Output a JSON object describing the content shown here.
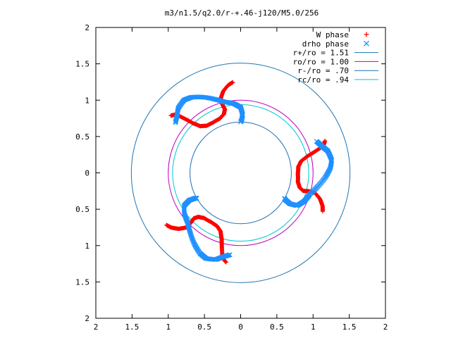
{
  "chart_data": {
    "type": "scatter",
    "title": "m3/n1.5/q2.0/r-+.46-j120/M5.0/256",
    "xlabel": "",
    "ylabel": "",
    "xlim": [
      -2,
      2
    ],
    "ylim": [
      -2,
      2
    ],
    "x_tick_labels": [
      "2",
      "1.5",
      "1",
      "0.5",
      "0",
      "0.5",
      "1",
      "1.5",
      "2"
    ],
    "y_tick_labels": [
      "2",
      "1.5",
      "1",
      "0.5",
      "0",
      "0.5",
      "1",
      "1.5",
      "2"
    ],
    "grid": false,
    "legend_position": "top-right",
    "series": [
      {
        "name": "W phase",
        "marker": "+",
        "color": "#ff0000",
        "lobes": [
          {
            "theta0": 95,
            "points": [
              [
                1.25,
                0.0
              ],
              [
                1.22,
                3
              ],
              [
                1.15,
                7
              ],
              [
                1.06,
                10
              ],
              [
                0.97,
                10
              ],
              [
                0.9,
                9
              ],
              [
                0.84,
                11
              ],
              [
                0.8,
                16
              ],
              [
                0.79,
                24
              ],
              [
                0.8,
                31
              ],
              [
                0.85,
                36
              ],
              [
                0.95,
                39
              ],
              [
                1.07,
                41
              ],
              [
                1.2,
                43
              ],
              [
                1.25,
                46
              ]
            ]
          },
          {
            "theta0": 215,
            "points": [
              [
                1.25,
                0.0
              ],
              [
                1.22,
                3
              ],
              [
                1.15,
                7
              ],
              [
                1.06,
                10
              ],
              [
                0.97,
                10
              ],
              [
                0.9,
                9
              ],
              [
                0.84,
                11
              ],
              [
                0.8,
                16
              ],
              [
                0.79,
                24
              ],
              [
                0.8,
                31
              ],
              [
                0.85,
                36
              ],
              [
                0.95,
                39
              ],
              [
                1.07,
                41
              ],
              [
                1.2,
                43
              ],
              [
                1.25,
                46
              ]
            ]
          },
          {
            "theta0": 335,
            "points": [
              [
                1.25,
                0.0
              ],
              [
                1.22,
                3
              ],
              [
                1.15,
                7
              ],
              [
                1.06,
                10
              ],
              [
                0.97,
                10
              ],
              [
                0.9,
                9
              ],
              [
                0.84,
                11
              ],
              [
                0.8,
                16
              ],
              [
                0.79,
                24
              ],
              [
                0.8,
                31
              ],
              [
                0.85,
                36
              ],
              [
                0.95,
                39
              ],
              [
                1.07,
                41
              ],
              [
                1.2,
                43
              ],
              [
                1.25,
                46
              ]
            ]
          }
        ]
      },
      {
        "name": "drho phase",
        "marker": "x",
        "color": "#1e90ff",
        "lobes": [
          {
            "theta0": 90,
            "points": [
              [
                0.7,
                0
              ],
              [
                0.72,
                -1
              ],
              [
                0.8,
                -2
              ],
              [
                0.9,
                0
              ],
              [
                0.96,
                6
              ],
              [
                1.0,
                13
              ],
              [
                1.08,
                20
              ],
              [
                1.17,
                27
              ],
              [
                1.24,
                33
              ],
              [
                1.27,
                38
              ],
              [
                1.24,
                44
              ],
              [
                1.18,
                48
              ],
              [
                1.13,
                53
              ]
            ]
          },
          {
            "theta0": 210,
            "points": [
              [
                0.7,
                0
              ],
              [
                0.72,
                -1
              ],
              [
                0.8,
                -2
              ],
              [
                0.9,
                0
              ],
              [
                0.96,
                6
              ],
              [
                1.0,
                13
              ],
              [
                1.08,
                20
              ],
              [
                1.17,
                27
              ],
              [
                1.24,
                33
              ],
              [
                1.27,
                38
              ],
              [
                1.24,
                44
              ],
              [
                1.18,
                48
              ],
              [
                1.13,
                53
              ]
            ]
          },
          {
            "theta0": 330,
            "points": [
              [
                0.7,
                0
              ],
              [
                0.72,
                -1
              ],
              [
                0.8,
                -2
              ],
              [
                0.9,
                0
              ],
              [
                0.96,
                6
              ],
              [
                1.0,
                13
              ],
              [
                1.08,
                20
              ],
              [
                1.17,
                27
              ],
              [
                1.24,
                33
              ],
              [
                1.27,
                38
              ],
              [
                1.24,
                44
              ],
              [
                1.18,
                48
              ],
              [
                1.13,
                53
              ]
            ]
          }
        ]
      },
      {
        "name": "r+/ro = 1.51",
        "type": "circle",
        "radius": 1.51,
        "color": "#1f77b4"
      },
      {
        "name": "ro/ro = 1.00",
        "type": "circle",
        "radius": 1.0,
        "color": "#c000c0"
      },
      {
        "name": "r-/ro = .70",
        "type": "circle",
        "radius": 0.7,
        "color": "#1f6fb4"
      },
      {
        "name": "rc/ro = .94",
        "type": "circle",
        "radius": 0.94,
        "color": "#00c8c8"
      }
    ]
  }
}
